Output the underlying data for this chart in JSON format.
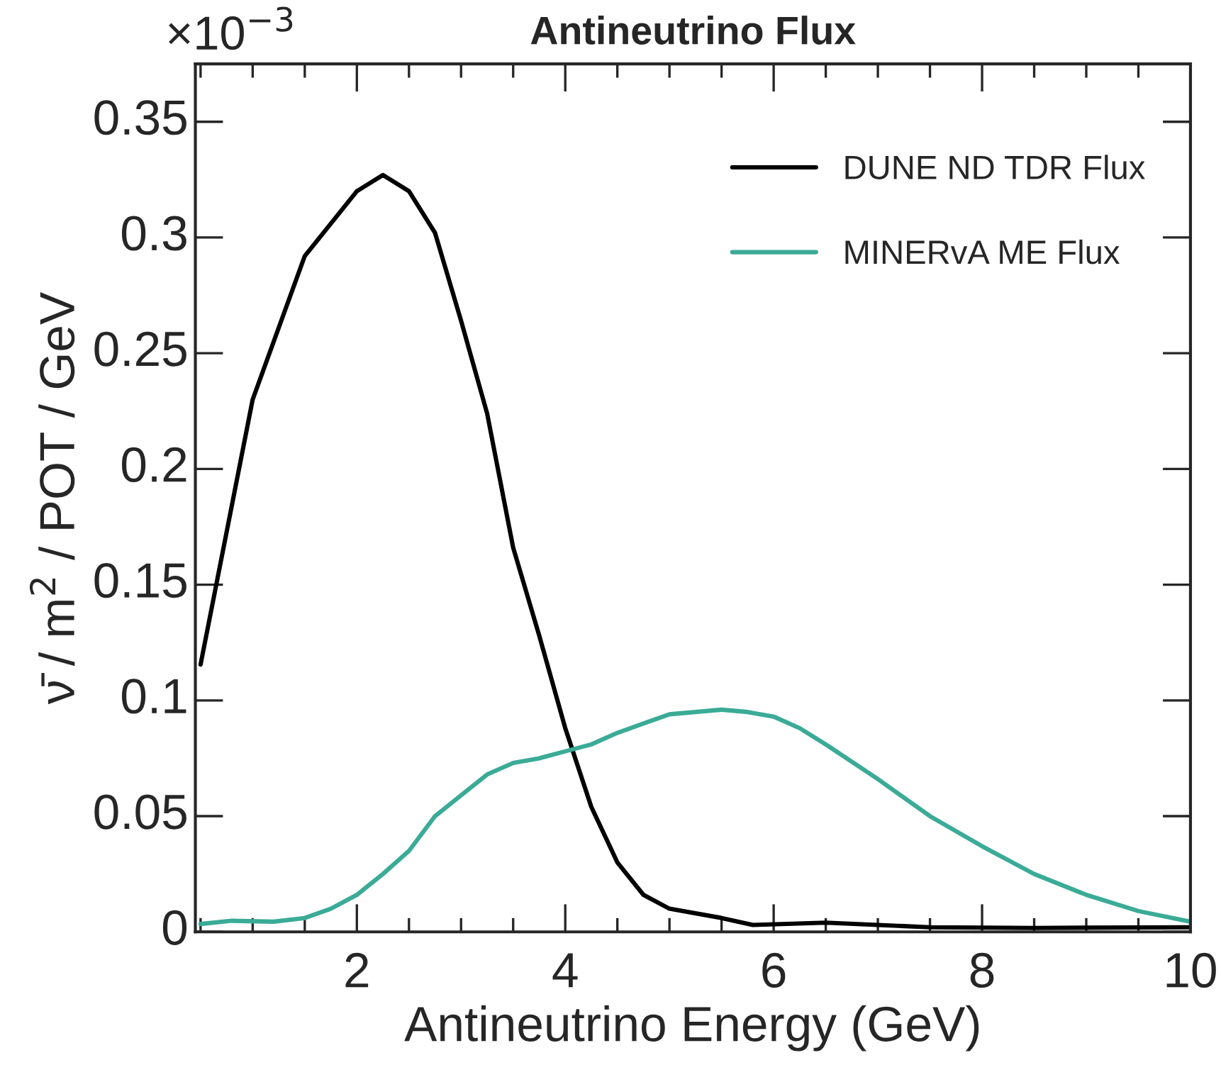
{
  "chart_data": {
    "type": "line",
    "title": "Antineutrino Flux",
    "xlabel": "Antineutrino Energy (GeV)",
    "ylabel": "ν̄ / m$^{2}$ / POT / GeV",
    "annotations": [
      "×10$^{−3}$"
    ],
    "xlim": [
      0.45,
      10
    ],
    "ylim": [
      0,
      0.375
    ],
    "xticks": [
      2,
      4,
      6,
      8,
      10
    ],
    "yticks": [
      0,
      0.05,
      0.1,
      0.15,
      0.2,
      0.25,
      0.3,
      0.35
    ],
    "grid": false,
    "legend": "top right",
    "line_style": "solid",
    "marker": "none",
    "series": [
      {
        "name": "DUNE ND TDR Flux",
        "color": "#000000",
        "x": [
          0.5,
          1.0,
          1.5,
          2.0,
          2.25,
          2.5,
          2.75,
          3.0,
          3.25,
          3.5,
          3.75,
          4.0,
          4.25,
          4.5,
          4.75,
          5.0,
          5.5,
          5.8,
          6.5,
          7.5,
          8.5,
          10
        ],
        "values": [
          0.1155,
          0.23,
          0.292,
          0.32,
          0.327,
          0.32,
          0.302,
          0.264,
          0.224,
          0.166,
          0.128,
          0.088,
          0.054,
          0.03,
          0.016,
          0.01,
          0.006,
          0.003,
          0.004,
          0.002,
          0.0017,
          0.002
        ]
      },
      {
        "name": "MINERvA ME Flux",
        "color": "#3aab96",
        "x": [
          0.5,
          0.8,
          1.2,
          1.5,
          1.75,
          2.0,
          2.25,
          2.5,
          2.75,
          3.0,
          3.25,
          3.5,
          3.75,
          4.0,
          4.25,
          4.5,
          4.75,
          5.0,
          5.5,
          5.75,
          6.0,
          6.25,
          6.5,
          7.0,
          7.5,
          8.0,
          8.5,
          9.0,
          9.5,
          10
        ],
        "values": [
          0.0034,
          0.0048,
          0.0044,
          0.006,
          0.01,
          0.016,
          0.025,
          0.035,
          0.05,
          0.059,
          0.068,
          0.073,
          0.075,
          0.078,
          0.081,
          0.086,
          0.09,
          0.094,
          0.096,
          0.095,
          0.093,
          0.088,
          0.081,
          0.066,
          0.05,
          0.037,
          0.025,
          0.016,
          0.009,
          0.0044
        ]
      }
    ]
  }
}
